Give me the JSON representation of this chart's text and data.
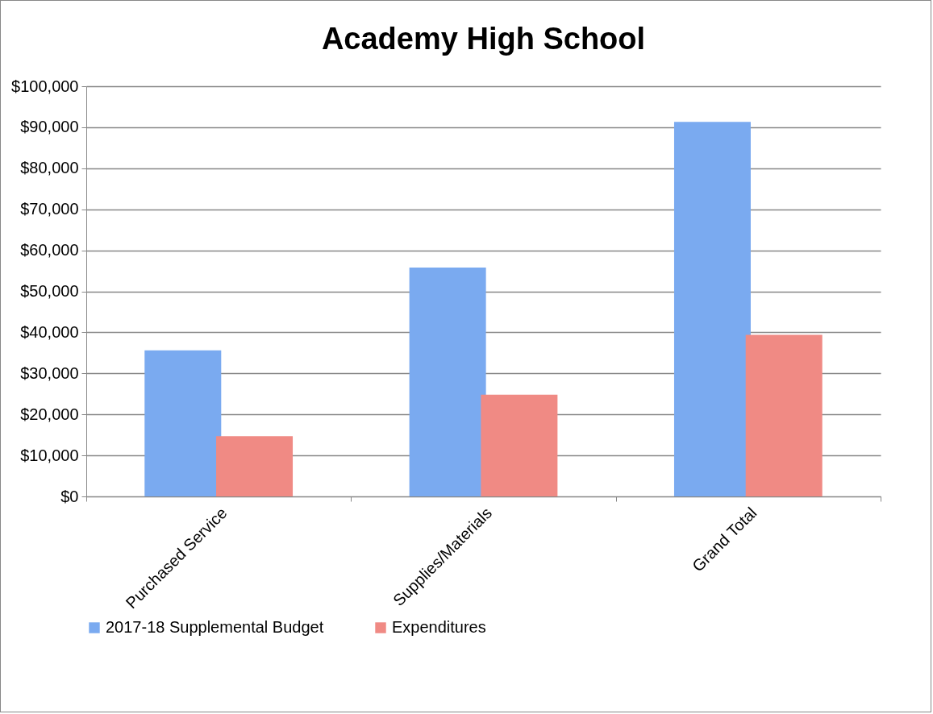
{
  "chart_data": {
    "type": "bar",
    "title": "Academy High School",
    "categories": [
      "Purchased Service",
      "Supplies/Materials",
      "Grand Total"
    ],
    "series": [
      {
        "name": "2017-18 Supplemental Budget",
        "color": "#7aaaf0",
        "values": [
          35600,
          55800,
          91300
        ]
      },
      {
        "name": "Expenditures",
        "color": "#f08a84",
        "values": [
          14700,
          24800,
          39400
        ]
      }
    ],
    "ylim": [
      0,
      100000
    ],
    "yticks": [
      {
        "value": 0,
        "label": "$0"
      },
      {
        "value": 10000,
        "label": "$10,000"
      },
      {
        "value": 20000,
        "label": "$20,000"
      },
      {
        "value": 30000,
        "label": "$30,000"
      },
      {
        "value": 40000,
        "label": "$40,000"
      },
      {
        "value": 50000,
        "label": "$50,000"
      },
      {
        "value": 60000,
        "label": "$60,000"
      },
      {
        "value": 70000,
        "label": "$70,000"
      },
      {
        "value": 80000,
        "label": "$80,000"
      },
      {
        "value": 90000,
        "label": "$90,000"
      },
      {
        "value": 100000,
        "label": "$100,000"
      }
    ],
    "grid": "y",
    "legend": "bottom"
  }
}
